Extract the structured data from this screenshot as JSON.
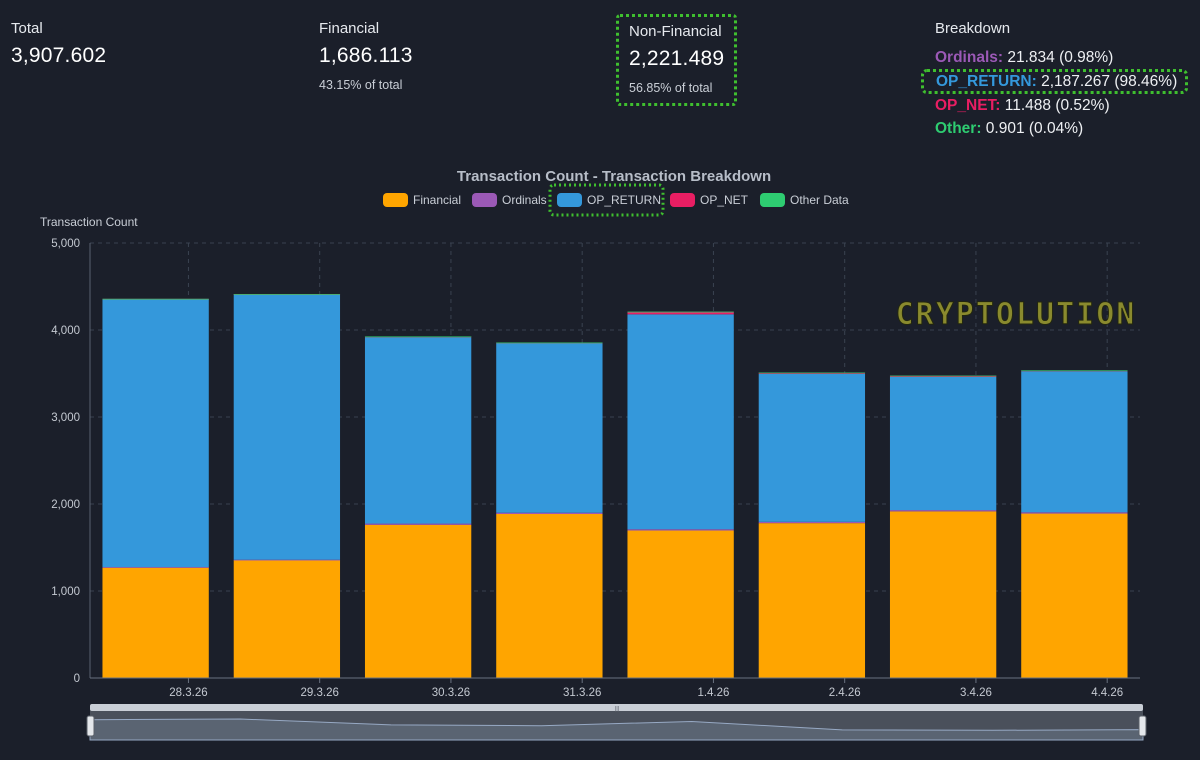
{
  "stats": {
    "total": {
      "label": "Total",
      "value": "3,907.602"
    },
    "financial": {
      "label": "Financial",
      "value": "1,686.113",
      "sub": "43.15% of total"
    },
    "non_financial": {
      "label": "Non-Financial",
      "value": "2,221.489",
      "sub": "56.85% of total"
    }
  },
  "breakdown": {
    "label": "Breakdown",
    "items": [
      {
        "name": "Ordinals:",
        "rest": " 21.834 (0.98%)",
        "color": "#9b59b6"
      },
      {
        "name": "OP_RETURN:",
        "rest": " 2,187.267 (98.46%)",
        "color": "#3498db"
      },
      {
        "name": "OP_NET:",
        "rest": " 11.488 (0.52%)",
        "color": "#e91e63"
      },
      {
        "name": "Other:",
        "rest": " 0.901 (0.04%)",
        "color": "#2ecc71"
      }
    ]
  },
  "watermark": "CRYPTOLUTION",
  "chart_data": {
    "type": "bar",
    "stacked": true,
    "title": "Transaction Count - Transaction Breakdown",
    "ylabel": "Transaction Count",
    "ylim": [
      0,
      5000
    ],
    "yticks": [
      0,
      1000,
      2000,
      3000,
      4000,
      5000
    ],
    "ytick_labels": [
      "0",
      "1,000",
      "2,000",
      "3,000",
      "4,000",
      "5,000"
    ],
    "grid": true,
    "legend_position": "top",
    "categories": [
      "28.3.26",
      "29.3.26",
      "30.3.26",
      "31.3.26",
      "1.4.26",
      "2.4.26",
      "3.4.26",
      "4.4.26"
    ],
    "series": [
      {
        "name": "Financial",
        "color": "#ffa500",
        "values": [
          1270,
          1355,
          1760,
          1885,
          1695,
          1780,
          1915,
          1890
        ]
      },
      {
        "name": "Ordinals",
        "color": "#9b59b6",
        "values": [
          5,
          5,
          15,
          15,
          15,
          15,
          15,
          15
        ]
      },
      {
        "name": "OP_RETURN",
        "color": "#3498db",
        "values": [
          3080,
          3050,
          2140,
          1945,
          2470,
          1700,
          1530,
          1620
        ]
      },
      {
        "name": "OP_NET",
        "color": "#e91e63",
        "values": [
          3,
          3,
          10,
          10,
          30,
          15,
          15,
          10
        ]
      },
      {
        "name": "Other Data",
        "color": "#2ecc71",
        "values": [
          1,
          1,
          1,
          1,
          1,
          1,
          1,
          1
        ]
      }
    ]
  }
}
